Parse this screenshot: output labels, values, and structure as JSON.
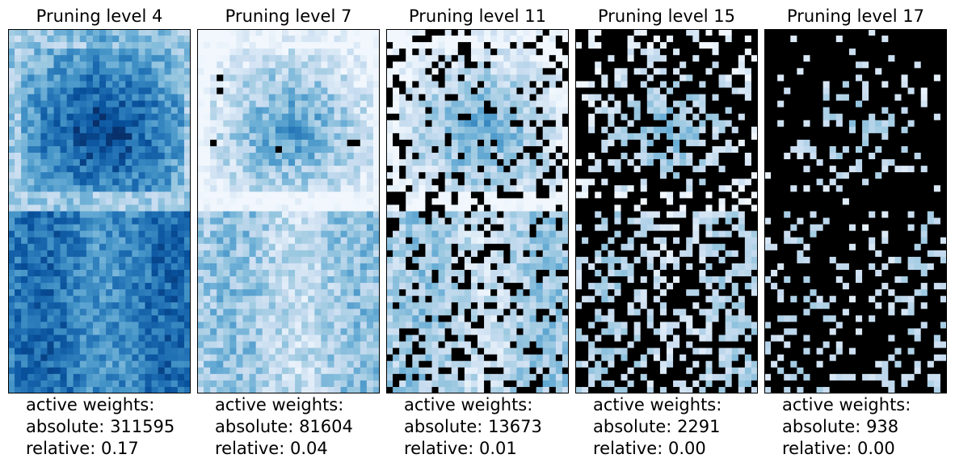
{
  "chart_data": [
    {
      "type": "heatmap",
      "title": "Pruning level 4",
      "colormap": "Blues",
      "pruned_color": "#000000",
      "pruned_fraction": 0.0,
      "stats": {
        "heading": "active weights:",
        "absolute_label": "absolute:",
        "absolute": 311595,
        "relative_label": "relative:",
        "relative": "0.17"
      }
    },
    {
      "type": "heatmap",
      "title": "Pruning level 7",
      "colormap": "Blues",
      "pruned_color": "#000000",
      "pruned_fraction": 0.003,
      "stats": {
        "heading": "active weights:",
        "absolute_label": "absolute:",
        "absolute": 81604,
        "relative_label": "relative:",
        "relative": "0.04"
      }
    },
    {
      "type": "heatmap",
      "title": "Pruning level 11",
      "colormap": "Blues",
      "pruned_color": "#000000",
      "pruned_fraction": 0.22,
      "stats": {
        "heading": "active weights:",
        "absolute_label": "absolute:",
        "absolute": 13673,
        "relative_label": "relative:",
        "relative": "0.01"
      }
    },
    {
      "type": "heatmap",
      "title": "Pruning level 15",
      "colormap": "Blues",
      "pruned_color": "#000000",
      "pruned_fraction": 0.6,
      "stats": {
        "heading": "active weights:",
        "absolute_label": "absolute:",
        "absolute": 2291,
        "relative_label": "relative:",
        "relative": "0.00"
      }
    },
    {
      "type": "heatmap",
      "title": "Pruning level 17",
      "colormap": "Blues",
      "pruned_color": "#000000",
      "pruned_fraction": 0.82,
      "stats": {
        "heading": "active weights:",
        "absolute_label": "absolute:",
        "absolute": 938,
        "relative_label": "relative:",
        "relative": "0.00"
      }
    }
  ]
}
